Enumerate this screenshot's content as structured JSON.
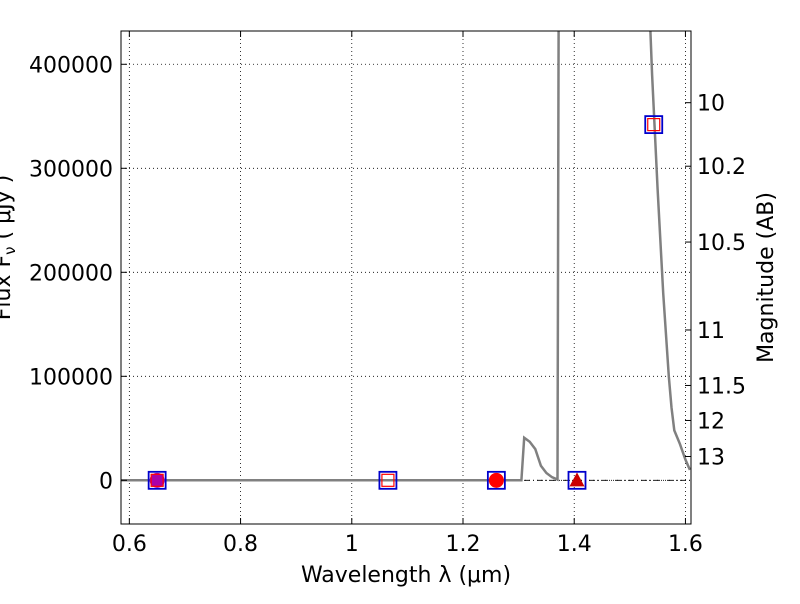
{
  "chart_data": {
    "type": "scatter",
    "title": "",
    "xlabel": "Wavelength  λ (μm)",
    "ylabel": "Flux  F_ν  ( μJy )",
    "ylabel_visible": "Flux F",
    "ylabel_sub": "ν",
    "ylabel_rest": " ( μJy )",
    "y2label": "Magnitude (AB)",
    "xlim": [
      0.585,
      1.61
    ],
    "ylim": [
      -42000,
      432000
    ],
    "grid": true,
    "x_ticks": [
      {
        "value": 0.6,
        "label": "0.6"
      },
      {
        "value": 0.8,
        "label": "0.8"
      },
      {
        "value": 1.0,
        "label": "1"
      },
      {
        "value": 1.2,
        "label": "1.2"
      },
      {
        "value": 1.4,
        "label": "1.4"
      },
      {
        "value": 1.6,
        "label": "1.6"
      }
    ],
    "y_ticks": [
      {
        "value": 0,
        "label": "0"
      },
      {
        "value": 100000,
        "label": "100000"
      },
      {
        "value": 200000,
        "label": "200000"
      },
      {
        "value": 300000,
        "label": "300000"
      },
      {
        "value": 400000,
        "label": "400000"
      }
    ],
    "mag_ticks": [
      {
        "value": 10,
        "label": "10"
      },
      {
        "value": 10.2,
        "label": "10.2"
      },
      {
        "value": 10.5,
        "label": "10.5"
      },
      {
        "value": 11,
        "label": "11"
      },
      {
        "value": 11.5,
        "label": "11.5"
      },
      {
        "value": 12,
        "label": "12"
      },
      {
        "value": 13,
        "label": "13"
      }
    ],
    "model_curve": {
      "color": "#808080",
      "points": [
        [
          0.585,
          0
        ],
        [
          1.305,
          0
        ],
        [
          1.31,
          41000
        ],
        [
          1.32,
          37000
        ],
        [
          1.33,
          30000
        ],
        [
          1.34,
          14000
        ],
        [
          1.35,
          7000
        ],
        [
          1.36,
          3000
        ],
        [
          1.37,
          800
        ],
        [
          1.372,
          432000
        ]
      ],
      "points_b": [
        [
          1.537,
          432000
        ],
        [
          1.54,
          390000
        ],
        [
          1.55,
          280000
        ],
        [
          1.56,
          180000
        ],
        [
          1.57,
          100000
        ],
        [
          1.575,
          70000
        ],
        [
          1.58,
          48000
        ],
        [
          1.59,
          35000
        ],
        [
          1.6,
          20000
        ],
        [
          1.608,
          10000
        ]
      ]
    },
    "zero_line": {
      "color": "#000000"
    },
    "model_squares": {
      "color": "#0000cc",
      "points": [
        [
          0.65,
          0
        ],
        [
          1.065,
          0
        ],
        [
          1.26,
          0
        ],
        [
          1.405,
          0
        ],
        [
          1.543,
          342000
        ]
      ]
    },
    "observed_squares": {
      "color": "#ff0000",
      "points": [
        [
          0.65,
          0
        ],
        [
          1.065,
          0
        ],
        [
          1.543,
          342000
        ]
      ]
    },
    "circles": [
      {
        "x": 0.65,
        "y": 0,
        "color": "#aa00aa"
      },
      {
        "x": 1.26,
        "y": 0,
        "color": "#ff0000"
      }
    ],
    "triangles": [
      {
        "x": 1.405,
        "y": 0,
        "color": "#cc0000"
      }
    ]
  }
}
